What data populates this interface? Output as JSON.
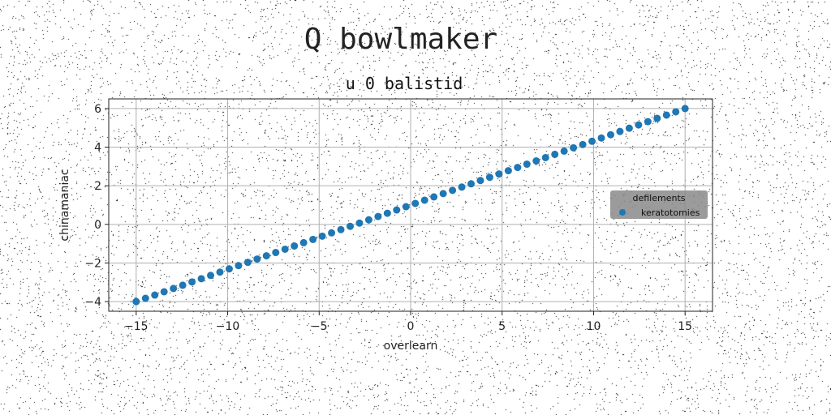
{
  "chart_data": {
    "type": "scatter",
    "suptitle": "Q bowlmaker",
    "title": "u 0 balistid",
    "xlabel": "overlearn",
    "ylabel": "chinamaniac",
    "xlim": [
      -16.5,
      16.5
    ],
    "ylim": [
      -4.5,
      6.5
    ],
    "xticks": [
      -15,
      -10,
      -5,
      0,
      5,
      10,
      15
    ],
    "yticks": [
      -4,
      -2,
      0,
      2,
      4,
      6
    ],
    "grid": true,
    "legend": {
      "title": "defilements",
      "placement": "center-right",
      "entries": [
        "keratotomies"
      ]
    },
    "series": [
      {
        "name": "keratotomies",
        "color": "#1f77b4",
        "marker": "circle",
        "x_start": -15,
        "x_end": 15,
        "count": 60,
        "slope": 0.3333,
        "intercept": 1.0
      }
    ]
  }
}
